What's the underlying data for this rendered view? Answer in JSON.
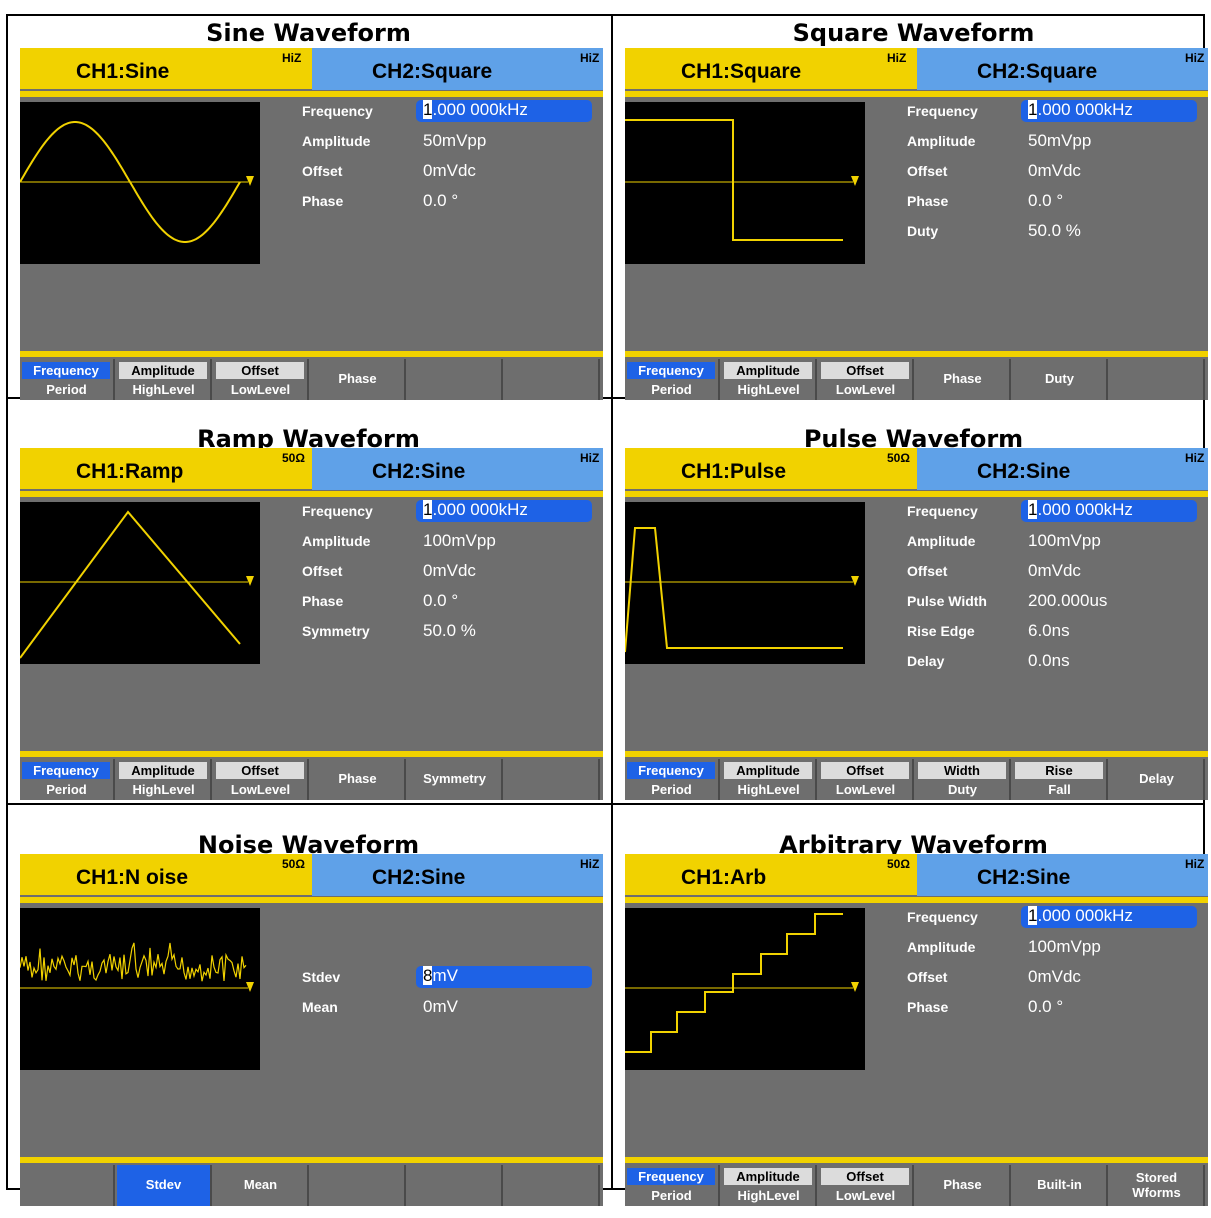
{
  "colors": {
    "yellow": "#f1d200",
    "blue_tab": "#5fa1e8",
    "screen_gray": "#6e6e6e",
    "highlight": "#1e62e6",
    "trace": "#f1d200"
  },
  "panels": [
    {
      "title": "Sine Waveform",
      "ch1": "CH1:Sine",
      "ch1_imp": "HiZ",
      "ch2": "CH2:Square",
      "ch2_imp": "HiZ",
      "wave": "sine",
      "params": [
        {
          "name": "Frequency",
          "cursor": "1",
          "rest": ".000 000kHz",
          "selected": true
        },
        {
          "name": "Amplitude",
          "value": "50mVpp"
        },
        {
          "name": "Offset",
          "value": "0mVdc"
        },
        {
          "name": "Phase",
          "value": "0.0 °"
        }
      ],
      "menu": [
        {
          "top": "Frequency",
          "bottom": "Period",
          "active": true
        },
        {
          "top": "Amplitude",
          "bottom": "HighLevel"
        },
        {
          "top": "Offset",
          "bottom": "LowLevel"
        },
        {
          "single": "Phase"
        },
        {
          "single": ""
        },
        {
          "single": ""
        }
      ]
    },
    {
      "title": "Square Waveform",
      "ch1": "CH1:Square",
      "ch1_imp": "HiZ",
      "ch2": "CH2:Square",
      "ch2_imp": "HiZ",
      "wave": "square",
      "params": [
        {
          "name": "Frequency",
          "cursor": "1",
          "rest": ".000 000kHz",
          "selected": true
        },
        {
          "name": "Amplitude",
          "value": "50mVpp"
        },
        {
          "name": "Offset",
          "value": "0mVdc"
        },
        {
          "name": "Phase",
          "value": "0.0 °"
        },
        {
          "name": "Duty",
          "value": "50.0 %"
        }
      ],
      "menu": [
        {
          "top": "Frequency",
          "bottom": "Period",
          "active": true
        },
        {
          "top": "Amplitude",
          "bottom": "HighLevel"
        },
        {
          "top": "Offset",
          "bottom": "LowLevel"
        },
        {
          "single": "Phase"
        },
        {
          "single": "Duty"
        },
        {
          "single": ""
        }
      ]
    },
    {
      "title": "Ramp Waveform",
      "ch1": "CH1:Ramp",
      "ch1_imp": "50Ω",
      "ch2": "CH2:Sine",
      "ch2_imp": "HiZ",
      "wave": "ramp",
      "params": [
        {
          "name": "Frequency",
          "cursor": "1",
          "rest": ".000 000kHz",
          "selected": true
        },
        {
          "name": "Amplitude",
          "value": "100mVpp"
        },
        {
          "name": "Offset",
          "value": "0mVdc"
        },
        {
          "name": "Phase",
          "value": "0.0 °"
        },
        {
          "name": "Symmetry",
          "value": "50.0 %"
        }
      ],
      "menu": [
        {
          "top": "Frequency",
          "bottom": "Period",
          "active": true
        },
        {
          "top": "Amplitude",
          "bottom": "HighLevel"
        },
        {
          "top": "Offset",
          "bottom": "LowLevel"
        },
        {
          "single": "Phase"
        },
        {
          "single": "Symmetry"
        },
        {
          "single": ""
        }
      ]
    },
    {
      "title": "Pulse Waveform",
      "ch1": "CH1:Pulse",
      "ch1_imp": "50Ω",
      "ch2": "CH2:Sine",
      "ch2_imp": "HiZ",
      "wave": "pulse",
      "params": [
        {
          "name": "Frequency",
          "cursor": "1",
          "rest": ".000 000kHz",
          "selected": true
        },
        {
          "name": "Amplitude",
          "value": "100mVpp"
        },
        {
          "name": "Offset",
          "value": "0mVdc"
        },
        {
          "name": "Pulse Width",
          "value": "200.000us"
        },
        {
          "name": "Rise Edge",
          "value": "6.0ns"
        },
        {
          "name": "Delay",
          "value": "0.0ns"
        }
      ],
      "menu": [
        {
          "top": "Frequency",
          "bottom": "Period",
          "active": true
        },
        {
          "top": "Amplitude",
          "bottom": "HighLevel"
        },
        {
          "top": "Offset",
          "bottom": "LowLevel"
        },
        {
          "top": "Width",
          "bottom": "Duty"
        },
        {
          "top": "Rise",
          "bottom": "Fall"
        },
        {
          "single": "Delay"
        }
      ]
    },
    {
      "title": "Noise Waveform",
      "ch1": "CH1:N oise",
      "ch1_imp": "50Ω",
      "ch2": "CH2:Sine",
      "ch2_imp": "HiZ",
      "wave": "noise",
      "params": [
        {
          "name": "",
          "value": ""
        },
        {
          "name": "",
          "value": ""
        },
        {
          "name": "Stdev",
          "cursor": "8",
          "rest": "mV",
          "selected": true
        },
        {
          "name": "Mean",
          "value": "0mV"
        }
      ],
      "menu": [
        {
          "single": ""
        },
        {
          "single": "Stdev",
          "active": true
        },
        {
          "single": "Mean"
        },
        {
          "single": ""
        },
        {
          "single": ""
        },
        {
          "single": ""
        }
      ]
    },
    {
      "title": "Arbitrary Waveform",
      "ch1": "CH1:Arb",
      "ch1_imp": "50Ω",
      "ch2": "CH2:Sine",
      "ch2_imp": "HiZ",
      "wave": "arb",
      "params": [
        {
          "name": "Frequency",
          "cursor": "1",
          "rest": ".000 000kHz",
          "selected": true
        },
        {
          "name": "Amplitude",
          "value": "100mVpp"
        },
        {
          "name": "Offset",
          "value": "0mVdc"
        },
        {
          "name": "Phase",
          "value": "0.0 °"
        }
      ],
      "menu": [
        {
          "top": "Frequency",
          "bottom": "Period",
          "active": true
        },
        {
          "top": "Amplitude",
          "bottom": "HighLevel"
        },
        {
          "top": "Offset",
          "bottom": "LowLevel"
        },
        {
          "single": "Phase"
        },
        {
          "single": "Built-in"
        },
        {
          "two": [
            "Stored",
            "Wforms"
          ]
        }
      ]
    }
  ]
}
